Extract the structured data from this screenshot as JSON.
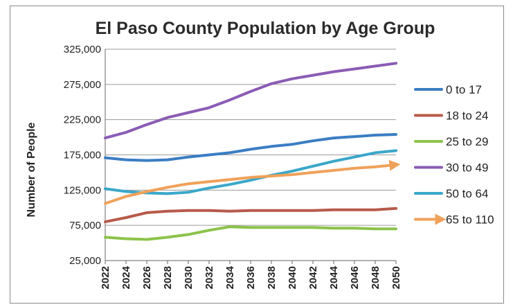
{
  "chart_data": {
    "type": "line",
    "title": "El Paso County Population by Age Group",
    "xlabel": "",
    "ylabel": "Number of People",
    "x": [
      2022,
      2024,
      2026,
      2028,
      2030,
      2032,
      2034,
      2036,
      2038,
      2040,
      2042,
      2044,
      2046,
      2048,
      2050
    ],
    "x_tick_labels": [
      "2022",
      "2024",
      "2026",
      "2028",
      "2030",
      "2032",
      "2034",
      "2036",
      "2038",
      "2040",
      "2042",
      "2044",
      "2046",
      "2048",
      "2050"
    ],
    "ylim": [
      25000,
      325000
    ],
    "y_ticks": [
      25000,
      75000,
      125000,
      175000,
      225000,
      275000,
      325000
    ],
    "y_tick_labels": [
      "25,000",
      "75,000",
      "125,000",
      "175,000",
      "225,000",
      "275,000",
      "325,000"
    ],
    "grid": true,
    "legend_position": "right",
    "series": [
      {
        "name": "0 to 17",
        "color": "#3b7dc4",
        "values": [
          171000,
          168000,
          167000,
          168000,
          172000,
          175000,
          178000,
          183000,
          187000,
          190000,
          195000,
          199000,
          201000,
          203000,
          204000
        ]
      },
      {
        "name": "18 to 24",
        "color": "#b85a4a",
        "values": [
          80000,
          86000,
          93000,
          95000,
          96000,
          96000,
          95000,
          96000,
          96000,
          96000,
          96000,
          97000,
          97000,
          97000,
          99000
        ]
      },
      {
        "name": "25 to 29",
        "color": "#8cc34a",
        "values": [
          58000,
          56000,
          55000,
          58000,
          62000,
          68000,
          73000,
          72000,
          72000,
          72000,
          72000,
          71000,
          71000,
          70000,
          70000
        ]
      },
      {
        "name": "30 to 49",
        "color": "#8a5cb5",
        "values": [
          199000,
          207000,
          218000,
          228000,
          235000,
          242000,
          253000,
          265000,
          276000,
          283000,
          288000,
          293000,
          297000,
          301000,
          305000
        ]
      },
      {
        "name": "50 to 64",
        "color": "#3aa7c9",
        "values": [
          127000,
          123000,
          121000,
          120000,
          122000,
          128000,
          133000,
          139000,
          146000,
          152000,
          159000,
          166000,
          172000,
          178000,
          181000
        ]
      },
      {
        "name": "65 to 110",
        "color": "#f0a15a",
        "arrow": true,
        "values": [
          106000,
          116000,
          123000,
          129000,
          134000,
          137000,
          140000,
          143000,
          145000,
          147000,
          150000,
          153000,
          156000,
          158000,
          161000
        ]
      }
    ]
  }
}
